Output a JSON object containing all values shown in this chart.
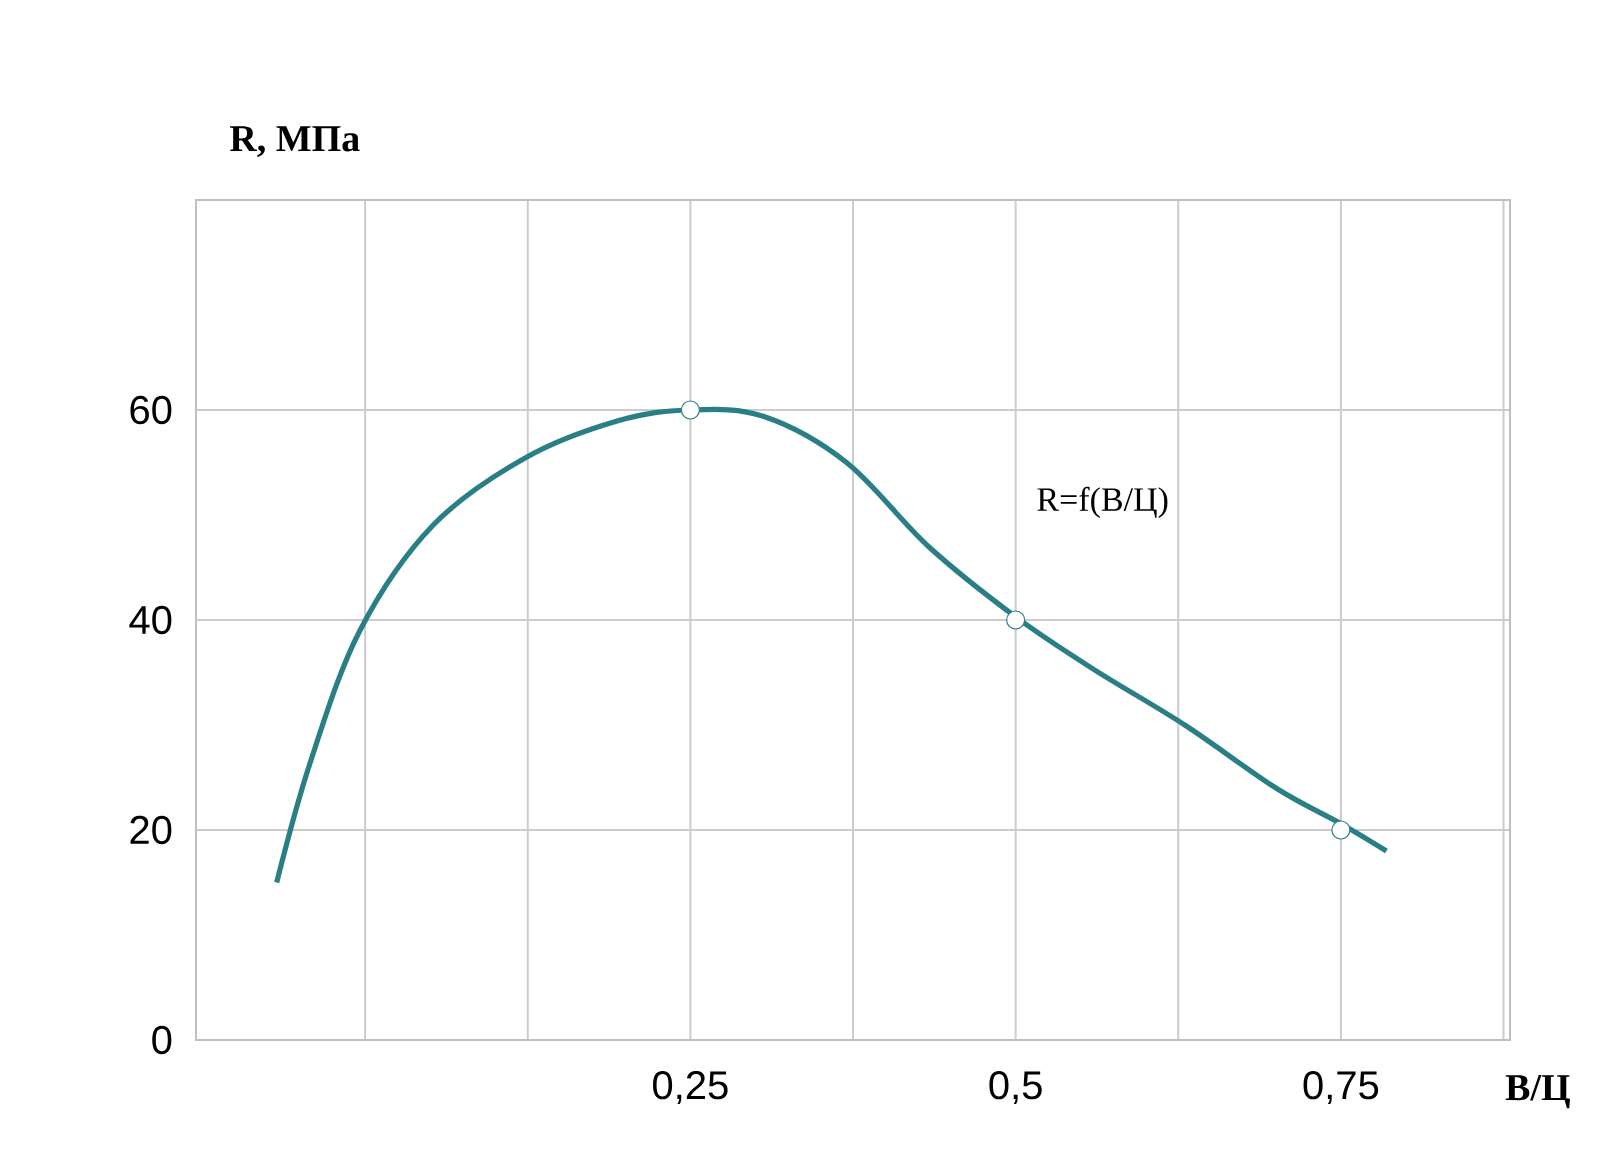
{
  "chart_data": {
    "type": "line",
    "xlabel": "В/Ц",
    "ylabel": "R, МПа",
    "annotations": [
      "R=f(В/Ц)"
    ],
    "xlim": [
      -0.13,
      0.88
    ],
    "ylim": [
      0,
      80
    ],
    "xticks": [
      {
        "value": 0,
        "label": null
      },
      {
        "value": 0.125,
        "label": null
      },
      {
        "value": 0.25,
        "label": "0,25"
      },
      {
        "value": 0.375,
        "label": null
      },
      {
        "value": 0.5,
        "label": "0,5"
      },
      {
        "value": 0.625,
        "label": null
      },
      {
        "value": 0.75,
        "label": "0,75"
      },
      {
        "value": 0.875,
        "label": null
      }
    ],
    "yticks": [
      0,
      20,
      40,
      60
    ],
    "grid": true,
    "line_style": "solid",
    "series": [
      {
        "color": "#2a7f86",
        "marker": "none",
        "x": [
          -0.068,
          -0.042,
          -0.004,
          0.052,
          0.124,
          0.195,
          0.249,
          0.306,
          0.37,
          0.433,
          0.5,
          0.56,
          0.63,
          0.7,
          0.75,
          0.785
        ],
        "values": [
          15,
          26.5,
          39,
          49,
          55.5,
          59,
          60,
          59.4,
          55,
          47,
          40.3,
          35.3,
          30,
          24,
          20.6,
          18
        ]
      },
      {
        "type": "scatter",
        "color": "#2a7f86",
        "marker": "circle",
        "x": [
          0.25,
          0.5,
          0.75
        ],
        "values": [
          60,
          40,
          20
        ]
      }
    ]
  }
}
